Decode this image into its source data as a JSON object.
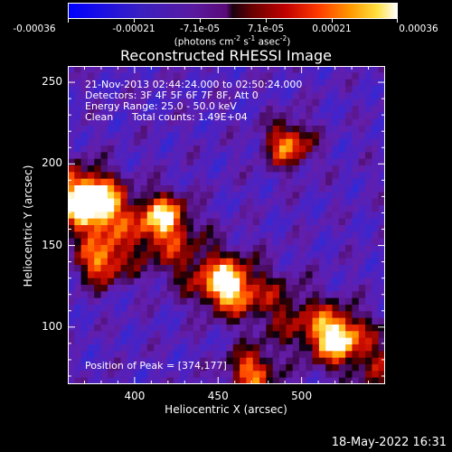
{
  "colorbar": {
    "ticks": [
      "-0.00036",
      "-0.00021",
      "-7.1e-05",
      "7.1e-05",
      "0.00021",
      "0.00036"
    ],
    "units": {
      "prefix": "(photons cm",
      "exp1": "-2",
      "mid1": " s",
      "exp2": "-1",
      "mid2": " asec",
      "exp3": "-2",
      "suffix": ")"
    },
    "colors": [
      "#0000ff",
      "#5a1aa0",
      "#1a0010",
      "#c00000",
      "#ff9a00",
      "#ffffff"
    ]
  },
  "chart_data": {
    "type": "heatmap",
    "title": "Reconstructed RHESSI Image",
    "xlabel": "Heliocentric X (arcsec)",
    "ylabel": "Heliocentric Y (arcsec)",
    "xlim": [
      360,
      550
    ],
    "ylim": [
      65,
      260
    ],
    "xticks": [
      400,
      450,
      500
    ],
    "yticks": [
      100,
      150,
      200,
      250
    ],
    "peak": [
      374,
      177
    ],
    "bright_regions": [
      {
        "x": 374,
        "y": 177
      },
      {
        "x": 492,
        "y": 212
      },
      {
        "x": 470,
        "y": 72
      },
      {
        "x": 418,
        "y": 168
      },
      {
        "x": 380,
        "y": 140
      },
      {
        "x": 520,
        "y": 95
      },
      {
        "x": 455,
        "y": 125
      }
    ],
    "vmin": -0.00036,
    "vmax": 0.00036
  },
  "info": {
    "line1": "21-Nov-2013 02:44:24.000 to 02:50:24.000",
    "line2": "Detectors: 3F 4F 5F 6F 7F 8F, Att 0",
    "line3": "Energy Range: 25.0 - 50.0 keV",
    "line4_method": "Clean",
    "line4_counts": "Total counts: 1.49E+04",
    "peak_text": "Position of Peak = [374,177]"
  },
  "timestamp": "18-May-2022 16:31"
}
